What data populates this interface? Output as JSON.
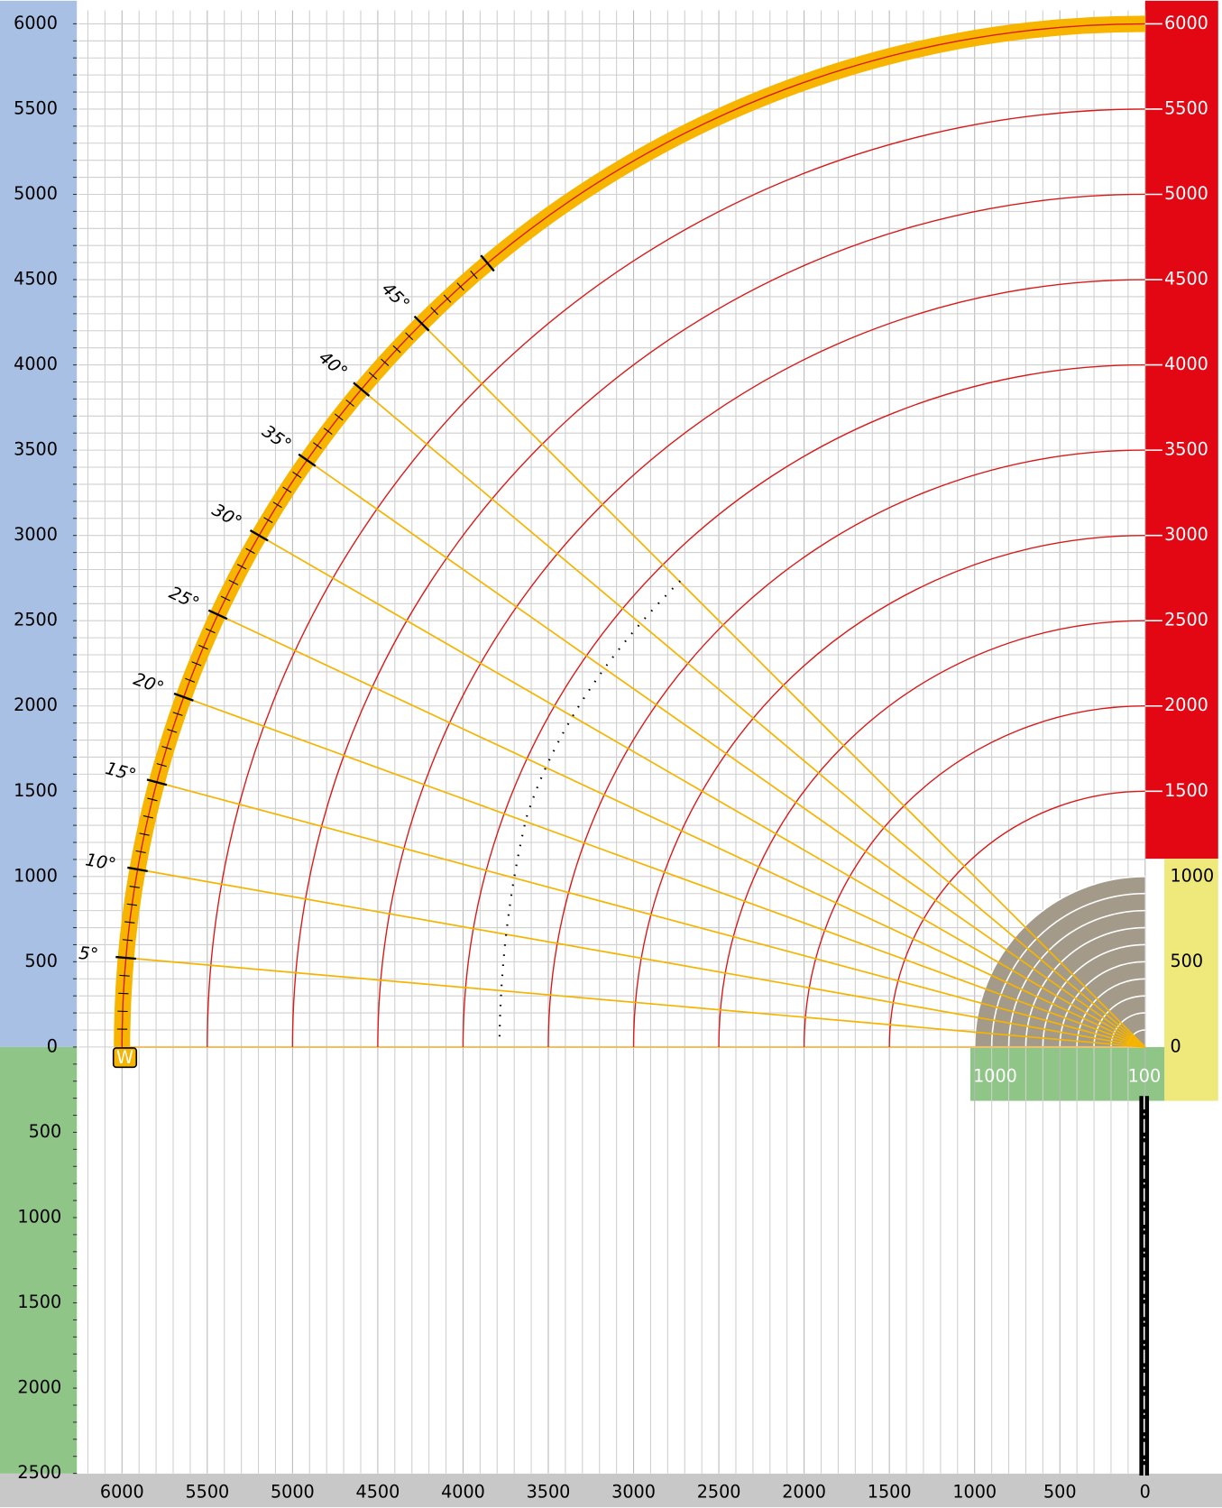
{
  "left_axis": {
    "up_ticks": [
      0,
      500,
      1000,
      1500,
      2000,
      2500,
      3000,
      3500,
      4000,
      4500,
      5000,
      5500,
      6000
    ],
    "down_ticks": [
      500,
      1000,
      1500,
      2000,
      2500
    ]
  },
  "right_axis": {
    "ticks": [
      1500,
      2000,
      2500,
      3000,
      3500,
      4000,
      4500,
      5000,
      5500,
      6000
    ]
  },
  "bottom_axis": {
    "ticks": [
      6000,
      5500,
      5000,
      4500,
      4000,
      3500,
      3000,
      2500,
      2000,
      1500,
      1000,
      500,
      0
    ]
  },
  "arcs": {
    "radii": [
      1500,
      2000,
      2500,
      3000,
      3500,
      4000,
      4500,
      5000,
      5500,
      6000
    ]
  },
  "angles": [
    {
      "value": 5,
      "label": "5°"
    },
    {
      "value": 10,
      "label": "10°"
    },
    {
      "value": 15,
      "label": "15°"
    },
    {
      "value": 20,
      "label": "20°"
    },
    {
      "value": 25,
      "label": "25°"
    },
    {
      "value": 30,
      "label": "30°"
    },
    {
      "value": 35,
      "label": "35°"
    },
    {
      "value": 40,
      "label": "40°"
    },
    {
      "value": 45,
      "label": "45°"
    }
  ],
  "inset": {
    "ticks": [
      0,
      500,
      1000
    ],
    "bottom_labels": [
      "1000",
      "100"
    ]
  },
  "marker": "W"
}
